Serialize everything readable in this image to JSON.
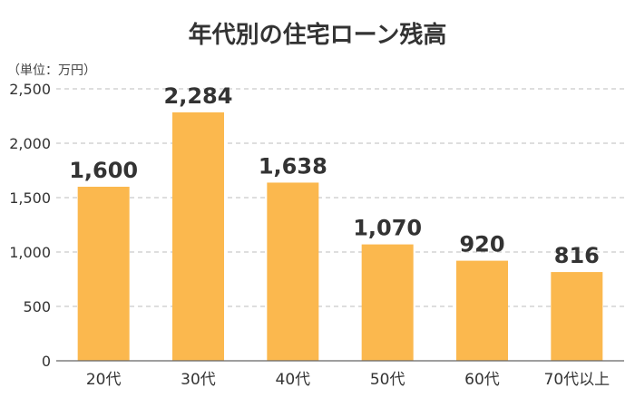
{
  "chart_data": {
    "type": "bar",
    "title": "年代別の住宅ローン残高",
    "unit_label": "（単位：万円）",
    "categories": [
      "20代",
      "30代",
      "40代",
      "50代",
      "60代",
      "70代以上"
    ],
    "values": [
      1600,
      2284,
      1638,
      1070,
      920,
      816
    ],
    "value_labels": [
      "1,600",
      "2,284",
      "1,638",
      "1,070",
      "920",
      "816"
    ],
    "yticks": [
      0,
      500,
      1000,
      1500,
      2000,
      2500
    ],
    "ytick_labels": [
      "0",
      "500",
      "1,000",
      "1,500",
      "2,000",
      "2,500"
    ],
    "ylim": [
      0,
      2500
    ],
    "grid": true,
    "bar_color": "#fbb84e"
  }
}
